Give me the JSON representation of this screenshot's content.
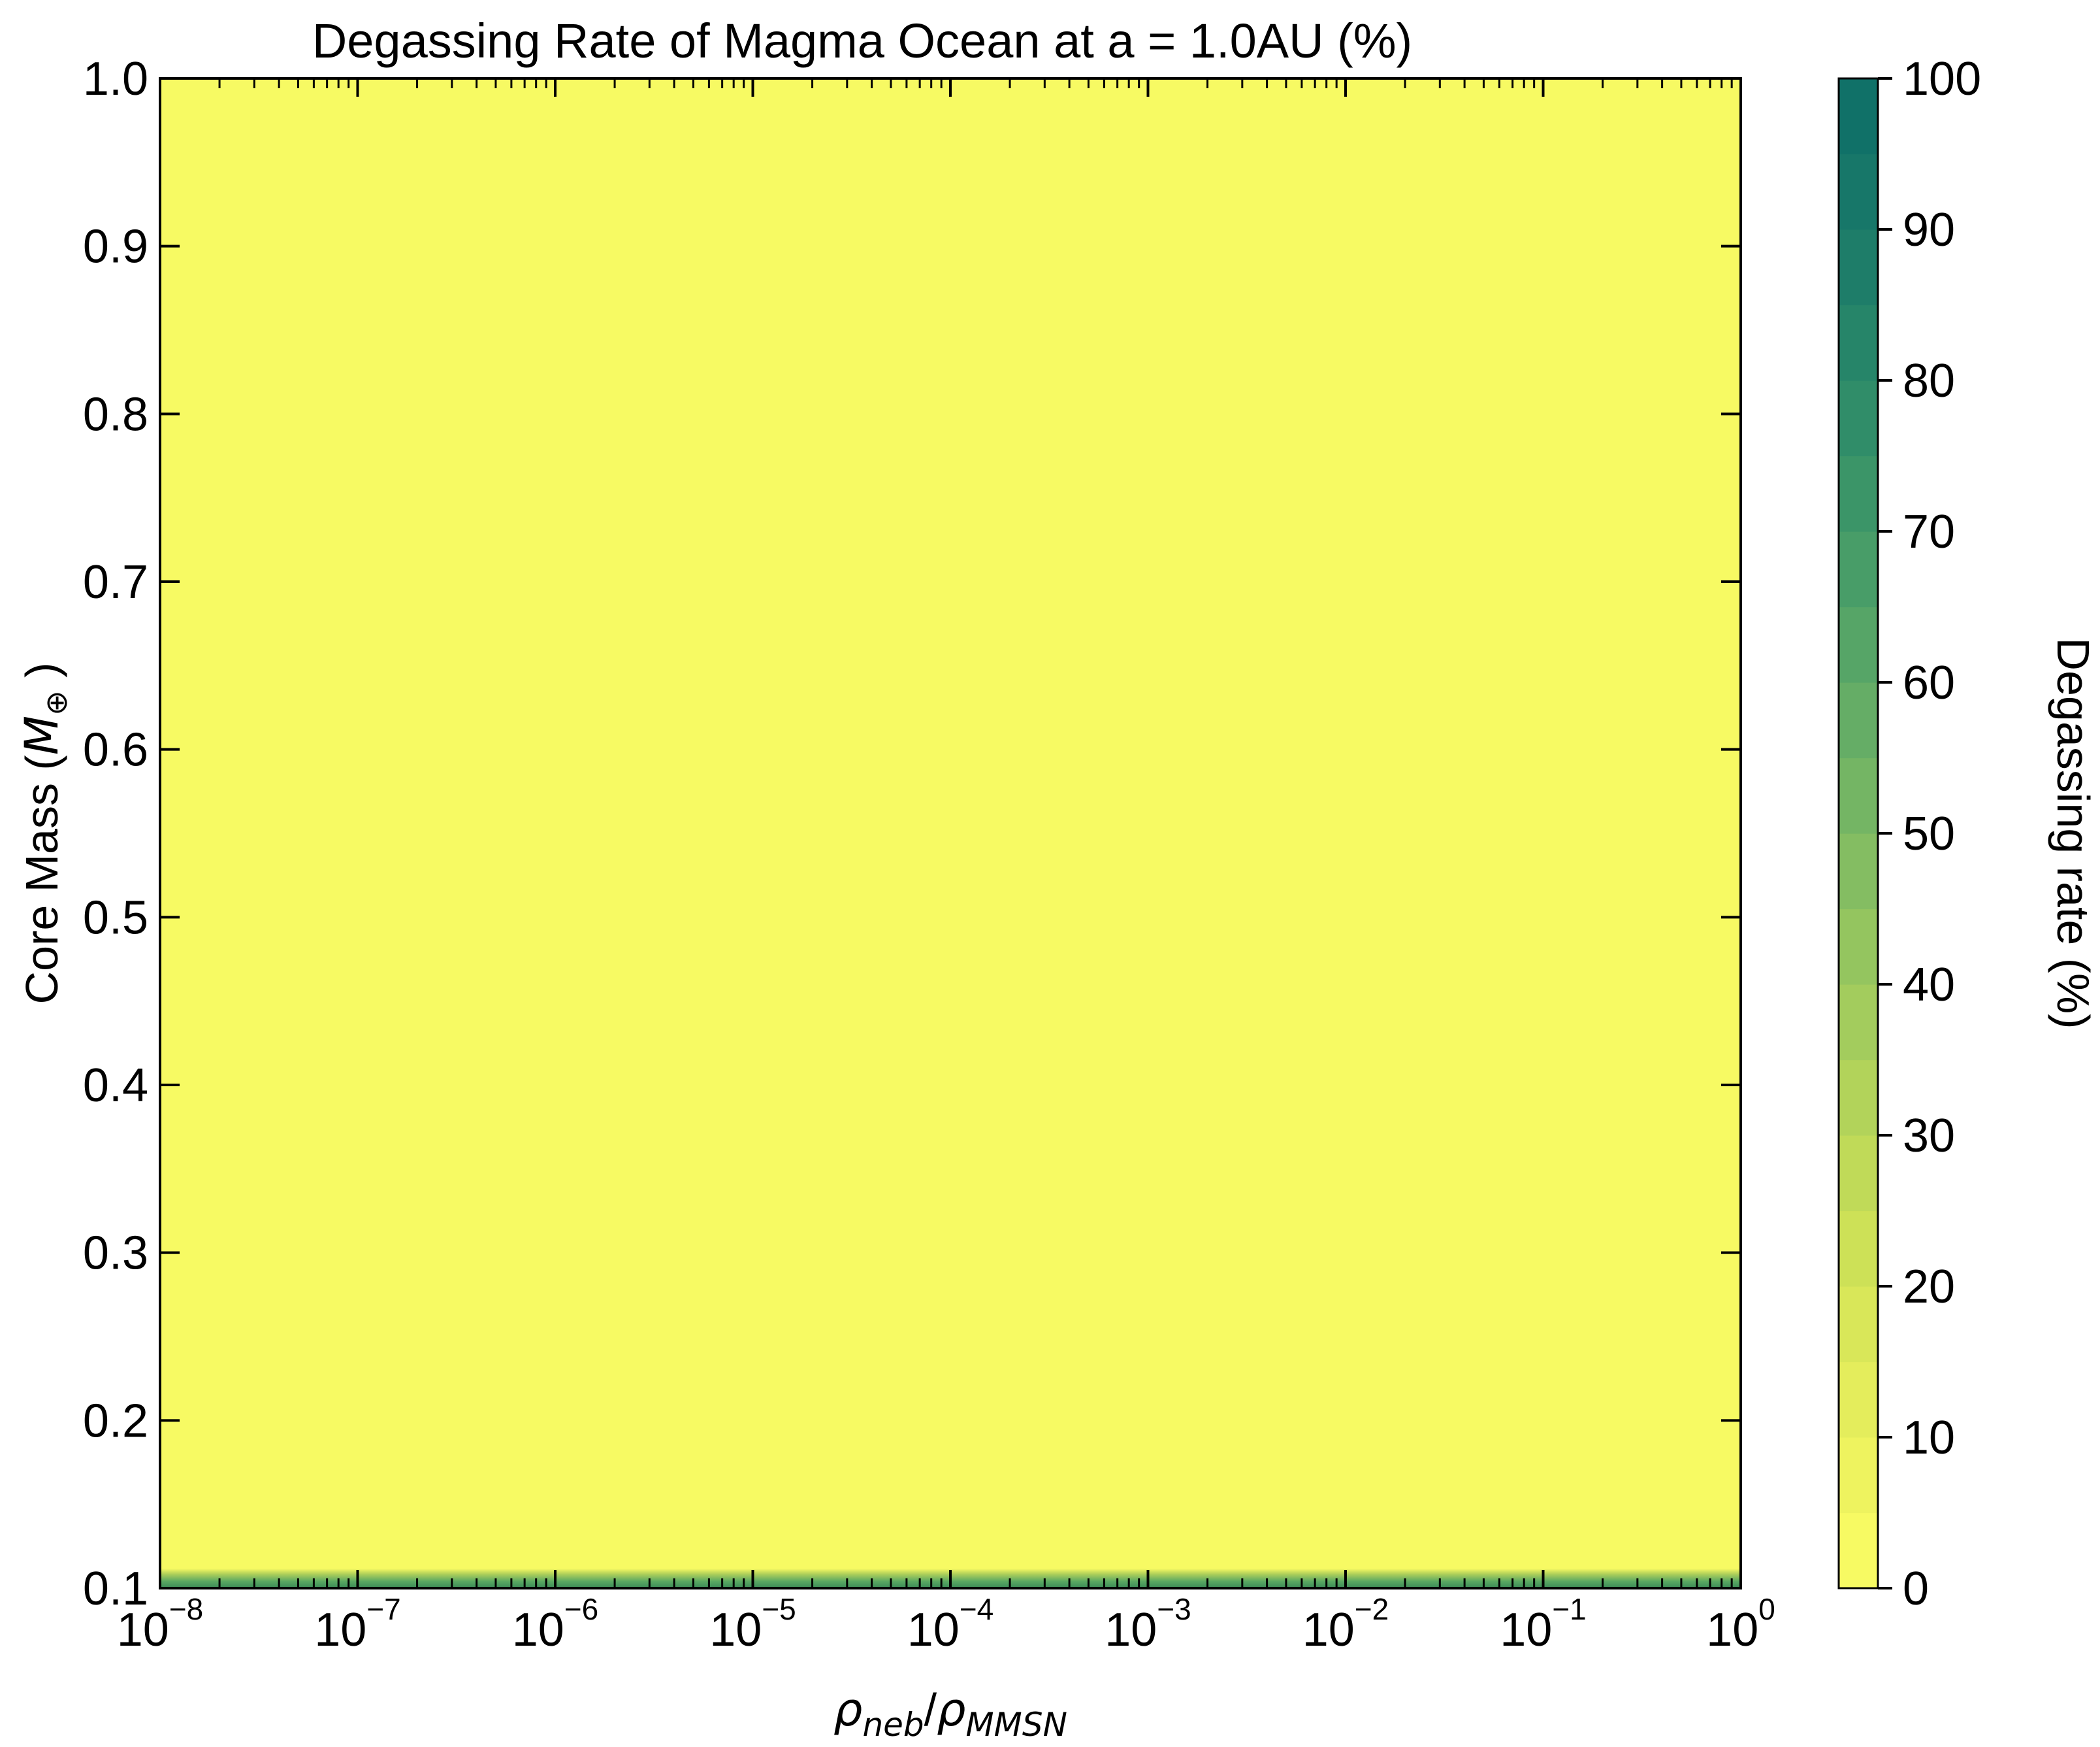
{
  "chart_data": {
    "type": "heatmap",
    "title": "Degassing Rate of Magma Ocean at a = 1.0AU (%)",
    "xlabel": {
      "rho1": "ρ",
      "sub1": "neb",
      "slash": "/",
      "rho2": "ρ",
      "sub2": "MMSN"
    },
    "ylabel": {
      "text": "Core Mass (",
      "m": "M",
      "sub": "⊕",
      "close": " )"
    },
    "x_scale": "log",
    "xlim": [
      1e-08,
      1
    ],
    "ylim": [
      0.1,
      1.0
    ],
    "x_ticks": [
      {
        "base": "10",
        "exp": "−8"
      },
      {
        "base": "10",
        "exp": "−7"
      },
      {
        "base": "10",
        "exp": "−6"
      },
      {
        "base": "10",
        "exp": "−5"
      },
      {
        "base": "10",
        "exp": "−4"
      },
      {
        "base": "10",
        "exp": "−3"
      },
      {
        "base": "10",
        "exp": "−2"
      },
      {
        "base": "10",
        "exp": "−1"
      },
      {
        "base": "10",
        "exp": "0"
      }
    ],
    "y_ticks": [
      "0.1",
      "0.2",
      "0.3",
      "0.4",
      "0.5",
      "0.6",
      "0.7",
      "0.8",
      "0.9",
      "1.0"
    ],
    "y_tick_values": [
      0.1,
      0.2,
      0.3,
      0.4,
      0.5,
      0.6,
      0.7,
      0.8,
      0.9,
      1.0
    ],
    "regions": [
      {
        "y_range": [
          0.1,
          0.105
        ],
        "value": 60,
        "description_value": "high degassing band near 0.1"
      },
      {
        "y_range": [
          0.105,
          1.0
        ],
        "value": 0
      }
    ],
    "colorbar": {
      "label": "Degassing rate (%)",
      "min": 0,
      "max": 100,
      "levels": 20,
      "ticks": [
        "0",
        "10",
        "20",
        "30",
        "40",
        "50",
        "60",
        "70",
        "80",
        "90",
        "100"
      ],
      "tick_values": [
        0,
        10,
        20,
        30,
        40,
        50,
        60,
        70,
        80,
        90,
        100
      ],
      "colors": [
        "#f7fa63",
        "#eef35f",
        "#e4ed5c",
        "#d9e759",
        "#cde157",
        "#c0da58",
        "#b2d35a",
        "#a3cc5d",
        "#94c55f",
        "#84bd62",
        "#74b564",
        "#65ad66",
        "#56a567",
        "#489d68",
        "#3b9568",
        "#308d69",
        "#268569",
        "#1e7d69",
        "#177769",
        "#107168"
      ]
    },
    "grid": false
  }
}
